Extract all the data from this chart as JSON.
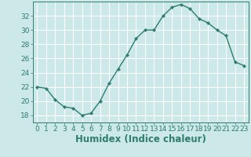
{
  "x": [
    0,
    1,
    2,
    3,
    4,
    5,
    6,
    7,
    8,
    9,
    10,
    11,
    12,
    13,
    14,
    15,
    16,
    17,
    18,
    19,
    20,
    21,
    22,
    23
  ],
  "y": [
    22,
    21.8,
    20.2,
    19.2,
    19.0,
    18.0,
    18.3,
    20.0,
    22.5,
    24.5,
    26.5,
    28.8,
    30.0,
    30.0,
    32.0,
    33.2,
    33.6,
    33.0,
    31.6,
    31.0,
    30.0,
    29.2,
    25.5,
    25.0
  ],
  "line_color": "#2e7d6e",
  "marker": "D",
  "marker_size": 2.2,
  "line_width": 1.0,
  "xlabel": "Humidex (Indice chaleur)",
  "xlim": [
    -0.5,
    23.5
  ],
  "ylim": [
    17,
    34
  ],
  "yticks": [
    18,
    20,
    22,
    24,
    26,
    28,
    30,
    32
  ],
  "xticks": [
    0,
    1,
    2,
    3,
    4,
    5,
    6,
    7,
    8,
    9,
    10,
    11,
    12,
    13,
    14,
    15,
    16,
    17,
    18,
    19,
    20,
    21,
    22,
    23
  ],
  "xtick_labels": [
    "0",
    "1",
    "2",
    "3",
    "4",
    "5",
    "6",
    "7",
    "8",
    "9",
    "10",
    "11",
    "12",
    "13",
    "14",
    "15",
    "16",
    "17",
    "18",
    "19",
    "20",
    "21",
    "22",
    "23"
  ],
  "background_color": "#cce8e8",
  "grid_color": "#ffffff",
  "tick_color": "#2e7d6e",
  "tick_fontsize": 6.5,
  "xlabel_fontsize": 8.5
}
